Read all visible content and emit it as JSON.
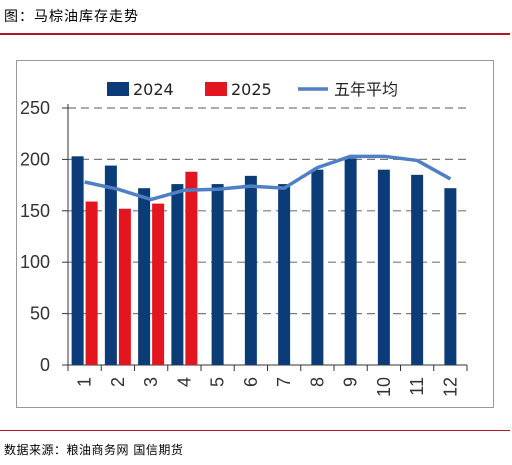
{
  "figure": {
    "title": "图：马棕油库存走势",
    "source": "数据来源：粮油商务网 国信期货"
  },
  "colors": {
    "series_2024": "#0b3c78",
    "series_2025": "#e3151f",
    "avg5": "#4f7fc4",
    "rule": "#b01825"
  },
  "chart_data": {
    "type": "bar",
    "categories": [
      "1",
      "2",
      "3",
      "4",
      "5",
      "6",
      "7",
      "8",
      "9",
      "10",
      "11",
      "12"
    ],
    "ylim": [
      0,
      250
    ],
    "yticks": [
      0,
      50,
      100,
      150,
      200,
      250
    ],
    "series": [
      {
        "name": "2024",
        "type": "bar",
        "values": [
          203,
          194,
          172,
          176,
          176,
          184,
          176,
          190,
          201,
          190,
          185,
          172
        ]
      },
      {
        "name": "2025",
        "type": "bar",
        "values": [
          159,
          152,
          157,
          188,
          null,
          null,
          null,
          null,
          null,
          null,
          null,
          null
        ]
      },
      {
        "name": "五年平均",
        "type": "line",
        "values": [
          178,
          171,
          161,
          170,
          171,
          174,
          172,
          192,
          203,
          203,
          199,
          181
        ]
      }
    ],
    "legend_position": "top",
    "grid": "dashed-horizontal"
  }
}
